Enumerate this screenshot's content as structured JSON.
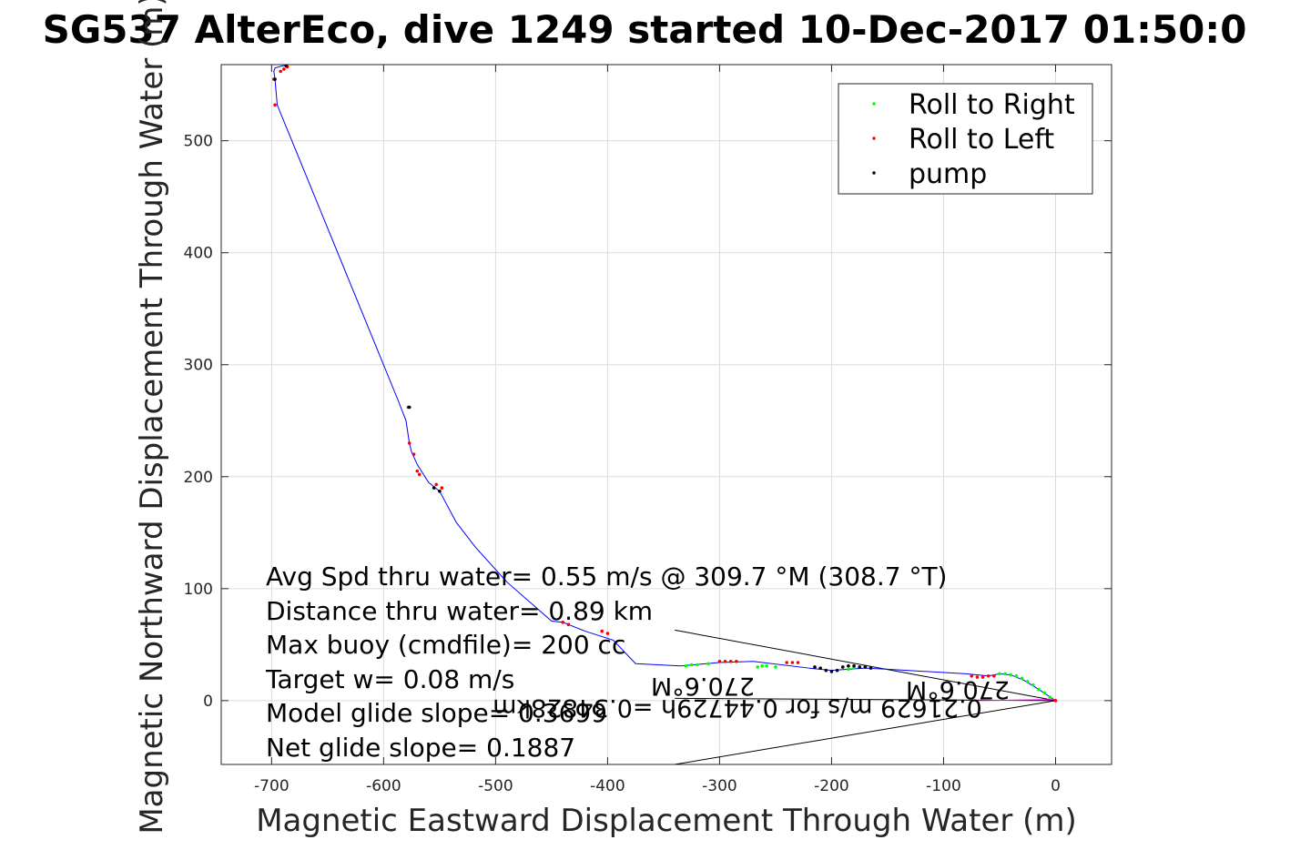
{
  "chart_data": {
    "type": "line",
    "title": "SG537 AlterEco, dive 1249 started 10-Dec-2017 01:50:0",
    "xlabel": "Magnetic Eastward Displacement Through Water (m)",
    "ylabel": "Magnetic Northward Displacement Through Water (m)",
    "xlim": [
      -745,
      50
    ],
    "ylim": [
      -57,
      568
    ],
    "xticks": [
      -700,
      -600,
      -500,
      -400,
      -300,
      -200,
      -100,
      0
    ],
    "yticks": [
      0,
      100,
      200,
      300,
      400,
      500
    ],
    "grid": true,
    "legend_position": "top-right",
    "colors": {
      "track": "#0000ff",
      "roll_right": "#00ff00",
      "roll_left": "#ff0000",
      "pump": "#000000",
      "grid": "#dcdcdc"
    },
    "legend": [
      {
        "label": "Roll to Right",
        "color": "#00ff00"
      },
      {
        "label": "Roll to Left",
        "color": "#ff0000"
      },
      {
        "label": "pump",
        "color": "#000000"
      }
    ],
    "series": [
      {
        "name": "track",
        "x": [
          0,
          -15,
          -28,
          -40,
          -50,
          -60,
          -80,
          -150,
          -170,
          -200,
          -220,
          -270,
          -300,
          -335,
          -375,
          -395,
          -420,
          -440,
          -450,
          -490,
          -518,
          -535,
          -550,
          -560,
          -565,
          -570,
          -575,
          -577,
          -580,
          -587,
          -695,
          -697,
          -698,
          -697,
          -690,
          -686
        ],
        "y": [
          0,
          10,
          18,
          23,
          24,
          22,
          24,
          28,
          29,
          27,
          29,
          35,
          34,
          31,
          33,
          54,
          62,
          70,
          71,
          106,
          137,
          159,
          187,
          195,
          203,
          211,
          222,
          230,
          250,
          268,
          532,
          555,
          562,
          565,
          567,
          567
        ]
      },
      {
        "name": "Roll to Right",
        "x": [
          -5,
          -10,
          -15,
          -20,
          -25,
          -30,
          -35,
          -40,
          -45,
          -50,
          -310,
          -320,
          -325,
          -330,
          -250,
          -258,
          -262,
          -266,
          -180,
          -185
        ],
        "y": [
          3,
          7,
          10,
          14,
          17,
          20,
          22,
          23,
          24,
          24,
          33,
          32,
          32,
          31,
          30,
          31,
          31,
          30,
          29,
          28
        ]
      },
      {
        "name": "Roll to Left",
        "x": [
          0,
          -55,
          -60,
          -65,
          -70,
          -75,
          -230,
          -235,
          -240,
          -285,
          -290,
          -295,
          -300,
          -400,
          -405,
          -435,
          -440,
          -548,
          -553,
          -568,
          -570,
          -573,
          -577,
          -578,
          -697,
          -698,
          -692,
          -686,
          -689
        ],
        "y": [
          0,
          22,
          22,
          21,
          21,
          22,
          34,
          34,
          34,
          35,
          35,
          35,
          35,
          60,
          62,
          68,
          70,
          190,
          193,
          202,
          205,
          220,
          230,
          262,
          532,
          555,
          562,
          566,
          564
        ],
        "connector_x": [
          -70,
          0
        ],
        "connector_y": [
          0,
          1
        ]
      },
      {
        "name": "pump",
        "x": [
          -195,
          -200,
          -205,
          -210,
          -215,
          -190,
          -185,
          -180,
          -175,
          -170,
          -165,
          -550,
          -555,
          -577,
          -697,
          -687
        ],
        "y": [
          27,
          26,
          27,
          29,
          30,
          30,
          31,
          31,
          30,
          30,
          29,
          187,
          190,
          262,
          555,
          567
        ]
      }
    ],
    "current_fan": {
      "from": [
        0,
        0
      ],
      "to_upper": [
        -340,
        63
      ],
      "to_mid": [
        -340,
        2
      ],
      "to_lower": [
        -340,
        -57
      ]
    },
    "annotations": [
      "Avg Spd thru water=  0.55 m/s @ 309.7 °M (308.7 °T)",
      "Distance thru water=  0.89 km",
      "Max buoy (cmdfile)= 200 cc",
      "Target w= 0.08 m/s",
      "Model glide slope= 0.3699",
      "Net glide slope= 0.1887"
    ],
    "flipped_annotations": {
      "current_a": "0.21629 m/s for 0.44729h =0.34828km",
      "current_b": "270.6°M",
      "current_c": "270.6°M"
    }
  }
}
